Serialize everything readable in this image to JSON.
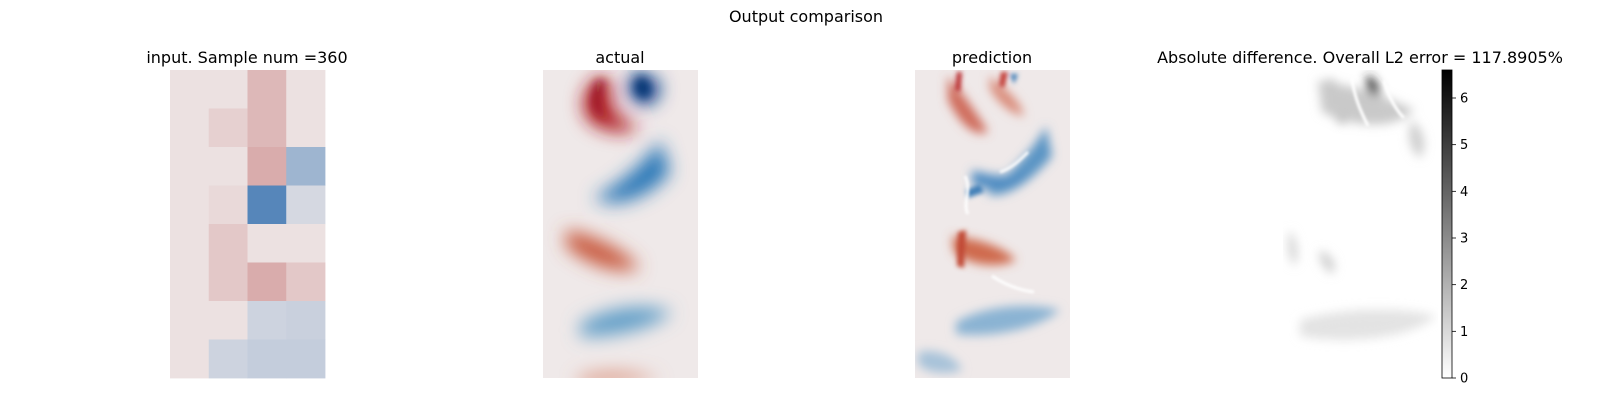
{
  "figure": {
    "suptitle": "Output comparison"
  },
  "panels": {
    "input": {
      "title": "input. Sample num =360"
    },
    "actual": {
      "title": "actual"
    },
    "prediction": {
      "title": "prediction"
    },
    "difference": {
      "title": "Absolute difference. Overall L2 error = 117.8905%"
    }
  },
  "colors": {
    "background": "#ffffff",
    "diverging_neutral": "#efe9e9",
    "diverging_red": "#a61c1c",
    "diverging_blue": "#1a5fa8",
    "diff_white": "#ffffff",
    "diff_black": "#000000"
  },
  "chart_data": [
    {
      "type": "heatmap",
      "title": "input. Sample num =360",
      "axes_visible": false,
      "grid": false,
      "colormap": "diverging red-blue",
      "rows": 8,
      "cols": 4,
      "values": [
        [
          0.04,
          0.04,
          0.24,
          0.04
        ],
        [
          0.04,
          0.12,
          0.24,
          0.04
        ],
        [
          0.04,
          0.04,
          0.3,
          -0.38
        ],
        [
          0.04,
          0.08,
          -0.72,
          -0.12
        ],
        [
          0.04,
          0.16,
          0.04,
          0.04
        ],
        [
          0.04,
          0.16,
          0.3,
          0.16
        ],
        [
          0.04,
          0.04,
          -0.16,
          -0.18
        ],
        [
          0.04,
          -0.16,
          -0.2,
          -0.2
        ]
      ]
    },
    {
      "type": "heatmap",
      "title": "actual",
      "axes_visible": false,
      "grid": false,
      "colormap": "diverging red-blue",
      "continuous": true
    },
    {
      "type": "heatmap",
      "title": "prediction",
      "axes_visible": false,
      "grid": false,
      "colormap": "diverging red-blue",
      "continuous": true
    },
    {
      "type": "heatmap",
      "title": "Absolute difference. Overall L2 error = 117.8905%",
      "axes_visible": false,
      "grid": false,
      "colormap": "greys",
      "continuous": true,
      "colorbar": {
        "range": [
          0,
          6.6
        ],
        "ticks": [
          "0",
          "1",
          "2",
          "3",
          "4",
          "5",
          "6"
        ]
      }
    }
  ]
}
